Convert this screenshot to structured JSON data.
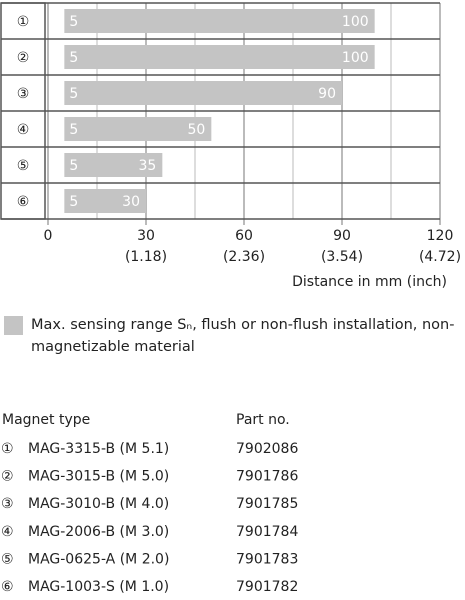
{
  "chart_data": {
    "type": "range-bar",
    "categories": [
      "①",
      "②",
      "③",
      "④",
      "⑤",
      "⑥"
    ],
    "start": [
      5,
      5,
      5,
      5,
      5,
      5
    ],
    "values": [
      100,
      100,
      90,
      50,
      35,
      30
    ],
    "color": "#c4c4c4",
    "xlim": [
      0,
      120
    ],
    "xticks": [
      0,
      {
        "value": 30,
        "label": "30",
        "inch_label": "(1.18)"
      },
      {
        "value": 60,
        "label": "60",
        "inch_label": "(2.36)"
      },
      {
        "value": 90,
        "label": "90",
        "inch_label": "(3.54)"
      },
      {
        "value": 120,
        "label": "120",
        "inch_label": "(4.72)"
      }
    ],
    "minor_grid": [
      15,
      45,
      75,
      105
    ],
    "xlabel": "Distance in mm (inch)",
    "legend": "Max. sensing range Sₙ, flush or non-flush installation, non-magnetizable material"
  },
  "table": {
    "header": [
      "Magnet type",
      "Part no."
    ],
    "rows": [
      [
        "①",
        "MAG-3315-B (M 5.1)",
        "7902086"
      ],
      [
        "②",
        "MAG-3015-B (M 5.0)",
        "7901786"
      ],
      [
        "③",
        "MAG-3010-B (M 4.0)",
        "7901785"
      ],
      [
        "④",
        "MAG-2006-B (M 3.0)",
        "7901784"
      ],
      [
        "⑤",
        "MAG-0625-A (M 2.0)",
        "7901783"
      ],
      [
        "⑥",
        "MAG-1003-S (M 1.0)",
        "7901782"
      ]
    ]
  }
}
